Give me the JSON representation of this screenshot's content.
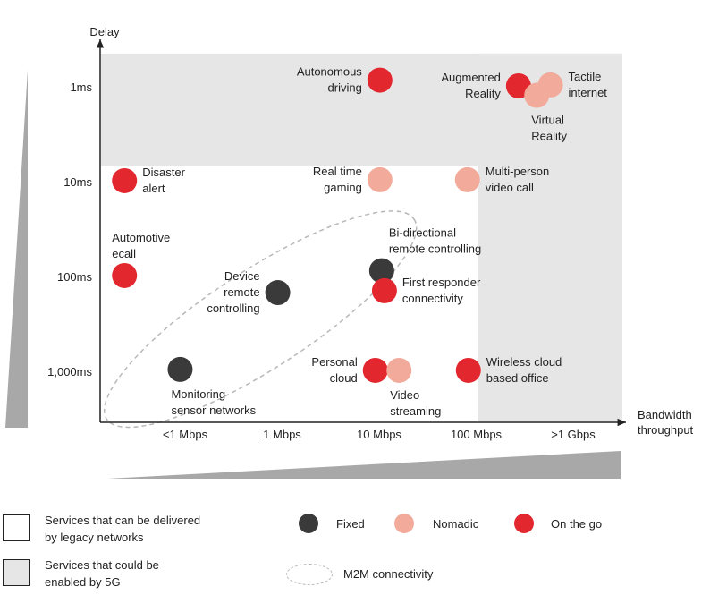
{
  "chart_data": {
    "type": "scatter",
    "ylabel": "Delay",
    "xlabel_lines": [
      "Bandwidth",
      "throughput"
    ],
    "x_categories": [
      "<1 Mbps",
      "1 Mbps",
      "10 Mbps",
      "100 Mbps",
      ">1 Gbps"
    ],
    "y_categories": [
      "1ms",
      "10ms",
      "100ms",
      "1,000ms"
    ],
    "colors": {
      "fixed": "#3a3a3a",
      "nomadic": "#f2aa9b",
      "on_the_go": "#e2272f",
      "shade_5g": "#e6e6e6",
      "ellipse": "#b8b8b8",
      "wedge": "#a8a8a8"
    },
    "regions_5g": [
      {
        "note": "delay 1ms band across all bandwidths",
        "x_from": -0.2,
        "x_to": 5.6,
        "y_from": -0.35,
        "y_to": 0.83
      },
      {
        "note": "bandwidth above 100 Mbps",
        "x_from": 3.98,
        "x_to": 5.6,
        "y_from": -0.35,
        "y_to": 4.25
      }
    ],
    "points": [
      {
        "name": "Autonomous driving",
        "label_lines": [
          "Autonomous",
          "driving"
        ],
        "category": "on_the_go",
        "x": 2.91,
        "y": -0.07,
        "label_side": "left"
      },
      {
        "name": "Augmented Reality",
        "label_lines": [
          "Augmented",
          "Reality"
        ],
        "category": "on_the_go",
        "x": 4.43,
        "y": -0.01,
        "label_side": "left"
      },
      {
        "name": "Tactile internet",
        "label_lines": [
          "Tactile",
          "internet"
        ],
        "category": "nomadic",
        "x": 4.78,
        "y": -0.02,
        "label_side": "right"
      },
      {
        "name": "Virtual Reality",
        "label_lines": [
          "Virtual",
          "Reality"
        ],
        "category": "nomadic",
        "x": 4.63,
        "y": 0.09,
        "label_side": "below"
      },
      {
        "name": "Disaster alert",
        "label_lines": [
          "Disaster",
          "alert"
        ],
        "category": "on_the_go",
        "x": 0.11,
        "y": 0.99,
        "label_side": "right"
      },
      {
        "name": "Real time gaming",
        "label_lines": [
          "Real time",
          "gaming"
        ],
        "category": "nomadic",
        "x": 2.91,
        "y": 0.98,
        "label_side": "left"
      },
      {
        "name": "Multi-person video call",
        "label_lines": [
          "Multi-person",
          "video call"
        ],
        "category": "nomadic",
        "x": 3.87,
        "y": 0.98,
        "label_side": "right"
      },
      {
        "name": "Automotive ecall",
        "label_lines": [
          "Automotive",
          "ecall"
        ],
        "category": "on_the_go",
        "x": 0.11,
        "y": 1.99,
        "label_side": "above"
      },
      {
        "name": "Device remote controlling",
        "label_lines": [
          "Device",
          "remote",
          "controlling"
        ],
        "category": "fixed",
        "x": 1.79,
        "y": 2.17,
        "label_side": "left"
      },
      {
        "name": "Bi-directional remote controlling",
        "label_lines": [
          "Bi-directional",
          "remote controlling"
        ],
        "category": "fixed",
        "x": 2.93,
        "y": 1.94,
        "label_side": "above"
      },
      {
        "name": "First responder connectivity",
        "label_lines": [
          "First responder",
          "connectivity"
        ],
        "category": "on_the_go",
        "x": 2.96,
        "y": 2.15,
        "label_side": "right"
      },
      {
        "name": "Monitoring sensor networks",
        "label_lines": [
          "Monitoring",
          "sensor networks"
        ],
        "category": "fixed",
        "x": 0.72,
        "y": 2.98,
        "label_side": "below"
      },
      {
        "name": "Personal cloud",
        "label_lines": [
          "Personal",
          "cloud"
        ],
        "category": "on_the_go",
        "x": 2.86,
        "y": 2.99,
        "label_side": "left"
      },
      {
        "name": "Video streaming",
        "label_lines": [
          "Video",
          "streaming"
        ],
        "category": "nomadic",
        "x": 3.12,
        "y": 2.99,
        "label_side": "below"
      },
      {
        "name": "Wireless cloud based office",
        "label_lines": [
          "Wireless cloud",
          "based office"
        ],
        "category": "on_the_go",
        "x": 3.88,
        "y": 2.99,
        "label_side": "right"
      }
    ],
    "m2m_region": {
      "x_center": 1.6,
      "y_center": 2.45,
      "note": "dashed ellipse enclosing M2M services"
    }
  },
  "legend": {
    "legacy_lines": [
      "Services that can be delivered",
      "by legacy networks"
    ],
    "fiveg_lines": [
      "Services that could be",
      "enabled by 5G"
    ],
    "fixed": "Fixed",
    "nomadic": "Nomadic",
    "on_the_go": "On the go",
    "m2m": "M2M connectivity"
  }
}
